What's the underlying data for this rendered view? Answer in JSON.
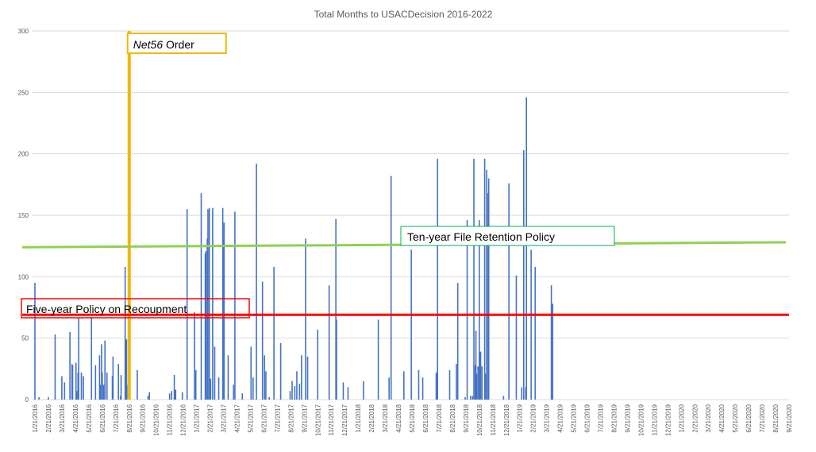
{
  "chart_data": {
    "type": "bar",
    "title": "Total Months to USACDecision 2016-2022",
    "xlabel": "",
    "ylabel": "",
    "ylim": [
      0,
      300
    ],
    "yticks": [
      0,
      50,
      100,
      150,
      200,
      250,
      300
    ],
    "grid": true,
    "x_categories": [
      "1/21/2016",
      "2/21/2016",
      "3/21/2016",
      "4/21/2016",
      "5/21/2016",
      "6/21/2016",
      "7/21/2016",
      "8/21/2016",
      "9/21/2016",
      "10/21/2016",
      "11/21/2016",
      "12/21/2016",
      "1/21/2017",
      "2/21/2017",
      "3/21/2017",
      "4/21/2017",
      "5/21/2017",
      "6/21/2017",
      "7/21/2017",
      "8/21/2017",
      "9/21/2017",
      "10/21/2017",
      "11/21/2017",
      "12/21/2017",
      "1/21/2018",
      "2/21/2018",
      "3/21/2018",
      "4/21/2018",
      "5/21/2018",
      "6/21/2018",
      "7/21/2018",
      "8/21/2018",
      "9/21/2018",
      "10/21/2018",
      "11/21/2018",
      "12/21/2018",
      "1/21/2019",
      "2/21/2019",
      "3/21/2019",
      "4/21/2019",
      "5/21/2019",
      "6/21/2019",
      "7/21/2019",
      "8/21/2019",
      "9/21/2019",
      "10/21/2019",
      "11/21/2019",
      "12/21/2019",
      "1/21/2020",
      "2/21/2020",
      "3/21/2020",
      "4/21/2020",
      "5/21/2020",
      "6/21/2020",
      "7/21/2020",
      "8/21/2020",
      "9/21/2020"
    ],
    "series": [
      {
        "color": "#4472c4",
        "points": [
          [
            0.0,
            95
          ],
          [
            0.3,
            2
          ],
          [
            1.0,
            2
          ],
          [
            1.5,
            53
          ],
          [
            2.0,
            19
          ],
          [
            2.2,
            14
          ],
          [
            2.6,
            55
          ],
          [
            2.75,
            29
          ],
          [
            2.8,
            28
          ],
          [
            3.05,
            30
          ],
          [
            3.1,
            7
          ],
          [
            3.2,
            22
          ],
          [
            3.25,
            67
          ],
          [
            3.45,
            22
          ],
          [
            3.6,
            19
          ],
          [
            4.2,
            67
          ],
          [
            4.5,
            28
          ],
          [
            4.8,
            36
          ],
          [
            4.85,
            12
          ],
          [
            4.95,
            45
          ],
          [
            5.0,
            22
          ],
          [
            5.1,
            12
          ],
          [
            5.2,
            48
          ],
          [
            5.35,
            22
          ],
          [
            5.8,
            35
          ],
          [
            5.75,
            19
          ],
          [
            6.2,
            29
          ],
          [
            6.35,
            3
          ],
          [
            6.4,
            20
          ],
          [
            6.7,
            108
          ],
          [
            6.75,
            49
          ],
          [
            6.8,
            49
          ],
          [
            6.9,
            12
          ],
          [
            6.95,
            51
          ],
          [
            7.05,
            20
          ],
          [
            7.6,
            24
          ],
          [
            8.5,
            6
          ],
          [
            8.4,
            3
          ],
          [
            10.0,
            5
          ],
          [
            10.15,
            7
          ],
          [
            10.35,
            20
          ],
          [
            10.4,
            8
          ],
          [
            10.45,
            8
          ],
          [
            10.95,
            6
          ],
          [
            11.3,
            155
          ],
          [
            11.85,
            71
          ],
          [
            11.95,
            24
          ],
          [
            12.35,
            168
          ],
          [
            12.65,
            119
          ],
          [
            12.7,
            121
          ],
          [
            12.8,
            131
          ],
          [
            12.85,
            155
          ],
          [
            12.95,
            156
          ],
          [
            13.05,
            17
          ],
          [
            13.2,
            156
          ],
          [
            13.35,
            43
          ],
          [
            13.65,
            18
          ],
          [
            13.95,
            156
          ],
          [
            14.0,
            131
          ],
          [
            14.05,
            144
          ],
          [
            14.35,
            36
          ],
          [
            14.75,
            12
          ],
          [
            14.85,
            153
          ],
          [
            15.4,
            5
          ],
          [
            16.05,
            43
          ],
          [
            16.2,
            18
          ],
          [
            16.45,
            192
          ],
          [
            16.9,
            96
          ],
          [
            17.05,
            36
          ],
          [
            17.15,
            23
          ],
          [
            17.4,
            2
          ],
          [
            17.75,
            108
          ],
          [
            18.25,
            46
          ],
          [
            18.95,
            7
          ],
          [
            19.1,
            15
          ],
          [
            19.3,
            11
          ],
          [
            19.45,
            23
          ],
          [
            19.65,
            13
          ],
          [
            19.8,
            36
          ],
          [
            20.1,
            131
          ],
          [
            20.25,
            35
          ],
          [
            21.0,
            57
          ],
          [
            21.85,
            93
          ],
          [
            22.35,
            147
          ],
          [
            22.4,
            65
          ],
          [
            22.9,
            14
          ],
          [
            23.25,
            10
          ],
          [
            24.4,
            15
          ],
          [
            25.5,
            65
          ],
          [
            26.3,
            18
          ],
          [
            26.45,
            182
          ],
          [
            27.4,
            23
          ],
          [
            27.95,
            122
          ],
          [
            28.5,
            24
          ],
          [
            28.8,
            18
          ],
          [
            29.8,
            22
          ],
          [
            29.85,
            20
          ],
          [
            29.9,
            196
          ],
          [
            30.8,
            24
          ],
          [
            31.3,
            29
          ],
          [
            31.4,
            95
          ],
          [
            31.95,
            2
          ],
          [
            32.1,
            146
          ],
          [
            32.35,
            3
          ],
          [
            32.5,
            3
          ],
          [
            32.6,
            196
          ],
          [
            32.7,
            28
          ],
          [
            32.75,
            56
          ],
          [
            32.8,
            21
          ],
          [
            32.9,
            27
          ],
          [
            33.0,
            146
          ],
          [
            33.05,
            39
          ],
          [
            33.1,
            39
          ],
          [
            33.2,
            27
          ],
          [
            33.4,
            196
          ],
          [
            33.45,
            21
          ],
          [
            33.55,
            187
          ],
          [
            33.6,
            168
          ],
          [
            33.7,
            180
          ],
          [
            34.8,
            3
          ],
          [
            35.2,
            176
          ],
          [
            35.75,
            101
          ],
          [
            36.15,
            10
          ],
          [
            36.3,
            203
          ],
          [
            36.45,
            10
          ],
          [
            36.5,
            246
          ],
          [
            36.85,
            122
          ],
          [
            37.15,
            108
          ],
          [
            38.35,
            93
          ],
          [
            38.45,
            78
          ]
        ]
      }
    ],
    "annotations": [
      {
        "type": "vline",
        "x": 7.0,
        "color": "#f2b700",
        "label": "Net56 Order",
        "label_prefix_italic": "Net56",
        "label_suffix": " Order"
      },
      {
        "type": "line",
        "y_start": 124,
        "y_end": 128,
        "color": "#92d050",
        "label": "Ten-year File Retention Policy",
        "label_border": "#00b050"
      },
      {
        "type": "hline",
        "y": 69,
        "color": "#ff0000",
        "label": "Five-year Policy on Recoupment",
        "label_border": "#ff0000"
      }
    ]
  }
}
